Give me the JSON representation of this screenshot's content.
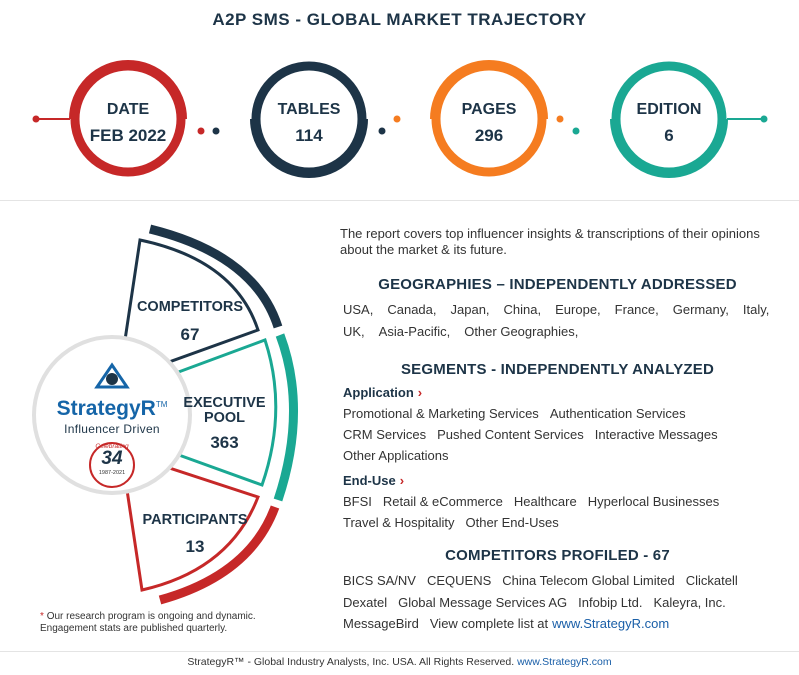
{
  "title": "A2P SMS - GLOBAL MARKET TRAJECTORY",
  "stats": [
    {
      "label": "DATE",
      "value": "FEB 2022",
      "color": "#c62828"
    },
    {
      "label": "TABLES",
      "value": "114",
      "color": "#1d3447"
    },
    {
      "label": "PAGES",
      "value": "296",
      "color": "#f57c20"
    },
    {
      "label": "EDITION",
      "value": "6",
      "color": "#1aa893"
    }
  ],
  "segments": [
    {
      "label_1": "COMPETITORS",
      "label_2": "",
      "value": "67",
      "color": "#1d3447"
    },
    {
      "label_1": "EXECUTIVE",
      "label_2": "POOL",
      "value": "363",
      "color": "#1aa893"
    },
    {
      "label_1": "PARTICIPANTS",
      "label_2": "",
      "value": "13",
      "color": "#c62828"
    }
  ],
  "logo": {
    "brand": "StrategyR",
    "trademark": "TM",
    "tagline": "Influencer Driven",
    "seal_word": "Celebrating",
    "seal_number": "34",
    "seal_years": "1987-2021"
  },
  "note": {
    "star": "*",
    "text": "Our research program is ongoing and dynamic. Engagement stats are published quarterly."
  },
  "intro": "The report covers top influencer insights & transcriptions of their opinions about the market & its future.",
  "geographies": {
    "heading": "GEOGRAPHIES – INDEPENDENTLY ADDRESSED",
    "line1": [
      "USA,",
      "Canada,",
      "Japan,",
      "China,",
      "Europe,",
      "France,",
      "Germany,",
      "Italy,"
    ],
    "line2": [
      "UK,",
      "Asia-Pacific,",
      "Other Geographies,"
    ]
  },
  "segments_section": {
    "heading": "SEGMENTS - INDEPENDENTLY ANALYZED",
    "application_label": "Application",
    "application_rows": [
      [
        "Promotional & Marketing Services",
        "Authentication Services"
      ],
      [
        "CRM Services",
        "Pushed Content Services",
        "Interactive Messages"
      ],
      [
        "Other Applications"
      ]
    ],
    "enduse_label": "End-Use",
    "enduse_rows": [
      [
        "BFSI",
        "Retail & eCommerce",
        "Healthcare",
        "Hyperlocal Businesses"
      ],
      [
        "Travel & Hospitality",
        "Other End-Uses"
      ]
    ]
  },
  "competitors": {
    "heading": "COMPETITORS PROFILED - 67",
    "rows": [
      [
        "BICS SA/NV",
        "CEQUENS",
        "China Telecom Global Limited",
        "Clickatell"
      ],
      [
        "Dexatel",
        "Global Message Services AG",
        "Infobip Ltd.",
        "Kaleyra, Inc."
      ],
      [
        "MessageBird"
      ]
    ],
    "view_text": "View complete list at",
    "view_link": "www.StrategyR.com"
  },
  "footer": {
    "text": "StrategyR™ - Global Industry Analysts, Inc. USA. All Rights Reserved.",
    "link": "www.StrategyR.com"
  }
}
